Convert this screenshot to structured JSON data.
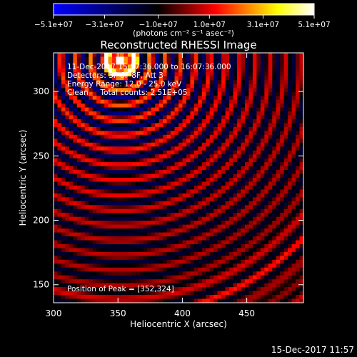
{
  "chart_data": {
    "type": "heatmap",
    "title": "Reconstructed RHESSI Image",
    "colorbar": {
      "tick_labels": [
        "−5.1e+07",
        "−3.1e+07",
        "−1.0e+07",
        "1.0e+07",
        "3.1e+07",
        "5.1e+07"
      ],
      "tick_values": [
        -51000000,
        -31000000,
        -10000000,
        10000000,
        31000000,
        51000000
      ],
      "range": [
        -51000000,
        51000000
      ],
      "units_label": "(photons cm⁻² s⁻¹ asec⁻²)",
      "colormap": [
        "#0000ff",
        "#000000",
        "#ff0000",
        "#ffff00",
        "#ffffff"
      ]
    },
    "xlabel": "Heliocentric X (arcsec)",
    "ylabel": "Heliocentric Y (arcsec)",
    "xlim": [
      300,
      494
    ],
    "ylim": [
      136,
      330
    ],
    "xticks": [
      300,
      350,
      400,
      450
    ],
    "yticks": [
      150,
      200,
      250,
      300
    ],
    "grid": false,
    "peak": {
      "x": 352,
      "y": 324
    },
    "annotations": [
      "11-Dec-2017 15:57:36.000 to 16:07:36.000",
      "Detectors: 3F 6F 8F, Att 3",
      "Energy Range: 12.0 - 25.0 keV",
      "Clean     Total counts: 2.51E+05"
    ],
    "peak_label": "Position of Peak = [352,324]"
  },
  "footer": {
    "timestamp": "15-Dec-2017 11:57"
  }
}
